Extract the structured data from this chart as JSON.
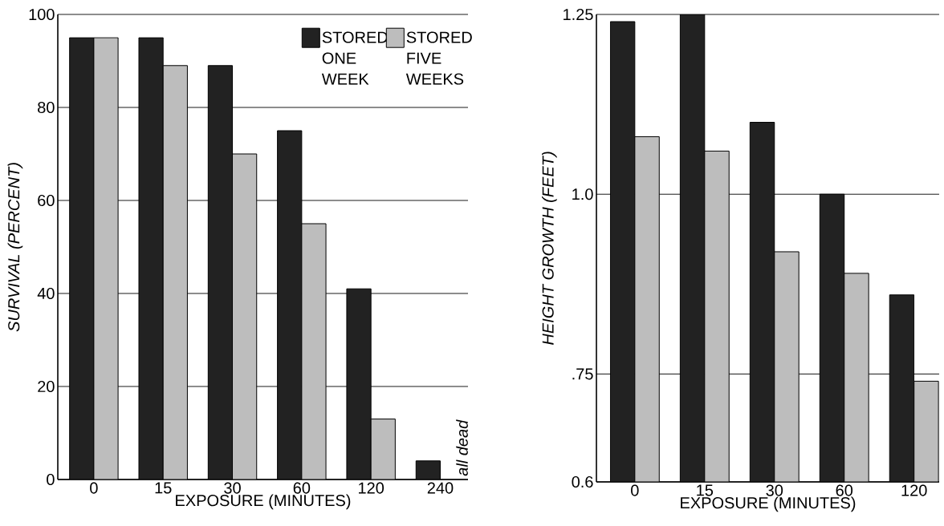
{
  "chart_data": [
    {
      "type": "bar",
      "categories": [
        "0",
        "15",
        "30",
        "60",
        "120",
        "240"
      ],
      "xlabel": "EXPOSURE (MINUTES)",
      "ylabel": "SURVIVAL (PERCENT)",
      "ylim": [
        0,
        100
      ],
      "yticks": [
        0,
        20,
        40,
        60,
        80,
        100
      ],
      "grid": "y",
      "legend": "top right",
      "series": [
        {
          "name": "STORED ONE WEEK",
          "color": "#222222",
          "values": [
            95,
            95,
            89,
            75,
            41,
            4
          ]
        },
        {
          "name": "STORED FIVE WEEKS",
          "color": "#bdbdbd",
          "values": [
            95,
            89,
            70,
            55,
            13,
            null
          ]
        }
      ],
      "annotations": [
        {
          "text": "all dead",
          "x": "240",
          "y": 0
        }
      ]
    },
    {
      "type": "bar",
      "categories": [
        "0",
        "15",
        "30",
        "60",
        "120"
      ],
      "xlabel": "EXPOSURE (MINUTES)",
      "ylabel": "HEIGHT GROWTH (FEET)",
      "ylim": [
        0.6,
        1.25
      ],
      "yticks": [
        0.6,
        {
          "value": 0.75,
          "label": ".75"
        },
        {
          "value": 1.0,
          "label": "1.0"
        },
        1.25
      ],
      "grid": "y",
      "series": [
        {
          "color": "#222222",
          "values": [
            1.24,
            1.25,
            1.1,
            1.0,
            0.86
          ]
        },
        {
          "color": "#bdbdbd",
          "values": [
            1.08,
            1.06,
            0.92,
            0.89,
            0.74
          ]
        }
      ]
    }
  ]
}
